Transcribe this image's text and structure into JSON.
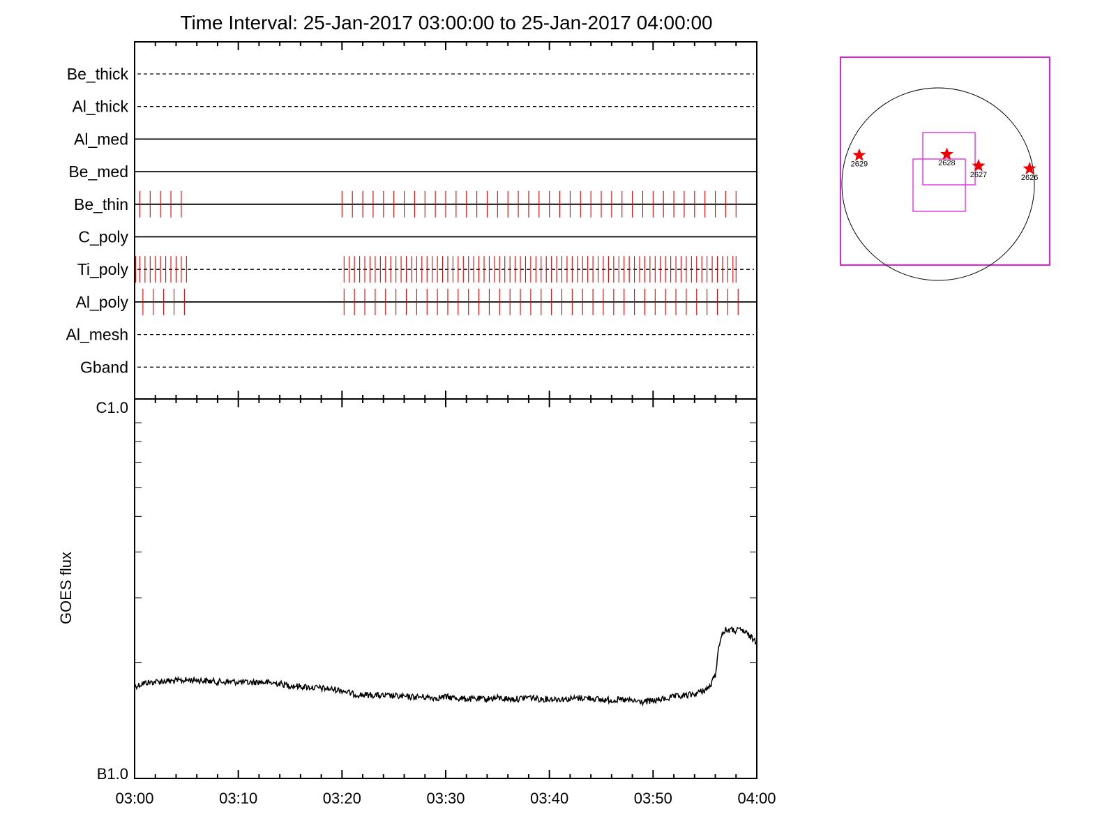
{
  "title": "Time Interval: 25-Jan-2017 03:00:00 to 25-Jan-2017 04:00:00",
  "chart_data": [
    {
      "type": "event_timeline",
      "channels": [
        {
          "name": "Be_thick",
          "style": "dashed",
          "marks": []
        },
        {
          "name": "Al_thick",
          "style": "dashed",
          "marks": []
        },
        {
          "name": "Al_med",
          "style": "solid",
          "marks": []
        },
        {
          "name": "Be_med",
          "style": "solid",
          "marks": []
        },
        {
          "name": "Be_thin",
          "style": "solid",
          "marks": [
            0.5,
            1.5,
            2.5,
            3.5,
            4.5,
            20.0,
            21.0,
            22.0,
            23.0,
            24.0,
            25.0,
            26.0,
            27.0,
            28.0,
            29.0,
            30.0,
            31.0,
            32.0,
            33.0,
            34.0,
            35.0,
            36.0,
            37.0,
            38.0,
            39.0,
            40.0,
            41.0,
            42.0,
            43.0,
            44.0,
            45.0,
            46.0,
            47.0,
            48.0,
            49.0,
            50.0,
            51.0,
            52.0,
            53.0,
            54.0,
            55.0,
            56.0,
            57.0,
            58.0
          ]
        },
        {
          "name": "C_poly",
          "style": "solid",
          "marks": []
        },
        {
          "name": "Ti_poly",
          "style": "dashed",
          "marks": [
            0.1,
            0.5,
            1.0,
            1.5,
            2.0,
            2.5,
            3.0,
            3.5,
            4.0,
            4.5,
            5.0,
            20.2,
            20.7,
            21.2,
            21.7,
            22.2,
            22.7,
            23.2,
            23.7,
            24.2,
            24.7,
            25.2,
            25.7,
            26.2,
            26.7,
            27.2,
            27.7,
            28.2,
            28.7,
            29.2,
            29.7,
            30.2,
            30.7,
            31.2,
            31.7,
            32.2,
            32.7,
            33.2,
            33.7,
            34.2,
            34.7,
            35.2,
            35.7,
            36.2,
            36.7,
            37.2,
            37.7,
            38.2,
            38.7,
            39.2,
            39.7,
            40.2,
            40.7,
            41.2,
            41.7,
            42.2,
            42.7,
            43.2,
            43.7,
            44.2,
            44.7,
            45.2,
            45.7,
            46.2,
            46.7,
            47.2,
            47.7,
            48.2,
            48.7,
            49.2,
            49.7,
            50.2,
            50.7,
            51.2,
            51.7,
            52.2,
            52.7,
            53.2,
            53.7,
            54.2,
            54.7,
            55.2,
            55.7,
            56.2,
            56.7,
            57.2,
            57.7,
            58.0
          ]
        },
        {
          "name": "Al_poly",
          "style": "solid",
          "marks": [
            0.8,
            1.8,
            2.8,
            3.8,
            4.8,
            20.2,
            21.2,
            22.2,
            23.2,
            24.2,
            25.2,
            26.2,
            27.2,
            28.2,
            29.2,
            30.2,
            31.2,
            32.2,
            33.2,
            34.2,
            35.2,
            36.2,
            37.2,
            38.2,
            39.2,
            40.2,
            41.2,
            42.2,
            43.2,
            44.2,
            45.2,
            46.2,
            47.2,
            48.2,
            49.2,
            50.2,
            51.2,
            52.2,
            53.2,
            54.2,
            55.2,
            56.2,
            57.2,
            58.2
          ]
        },
        {
          "name": "Al_mesh",
          "style": "dashed",
          "marks": []
        },
        {
          "name": "Gband",
          "style": "dashed",
          "marks": []
        }
      ],
      "colors": {
        "marks": "#e00000",
        "lines": "#000000"
      }
    },
    {
      "type": "line",
      "ylabel": "GOES flux",
      "yticklabels": [
        "C1.0",
        "B1.0"
      ],
      "ylim": [
        1e-06,
        1e-07
      ],
      "xticklabels": [
        "03:00",
        "03:10",
        "03:20",
        "03:30",
        "03:40",
        "03:50",
        "04:00"
      ],
      "xlim": [
        "03:00",
        "04:00"
      ],
      "x_minutes": [
        0,
        1,
        2,
        3,
        4,
        5,
        6,
        7,
        8,
        9,
        10,
        11,
        12,
        13,
        14,
        15,
        16,
        17,
        18,
        19,
        20,
        21,
        22,
        23,
        24,
        25,
        26,
        27,
        28,
        29,
        30,
        31,
        32,
        33,
        34,
        35,
        36,
        37,
        38,
        39,
        40,
        41,
        42,
        43,
        44,
        45,
        46,
        47,
        48,
        49,
        50,
        51,
        52,
        53,
        54,
        55,
        55.5,
        56,
        56.5,
        57,
        57.5,
        58,
        58.5,
        59,
        59.5,
        60
      ],
      "y_flux": [
        1.72e-07,
        1.76e-07,
        1.77e-07,
        1.78e-07,
        1.78e-07,
        1.79e-07,
        1.79e-07,
        1.78e-07,
        1.77e-07,
        1.77e-07,
        1.77e-07,
        1.76e-07,
        1.77e-07,
        1.76e-07,
        1.75e-07,
        1.73e-07,
        1.72e-07,
        1.71e-07,
        1.7e-07,
        1.69e-07,
        1.68e-07,
        1.64e-07,
        1.63e-07,
        1.63e-07,
        1.62e-07,
        1.62e-07,
        1.61e-07,
        1.61e-07,
        1.61e-07,
        1.6e-07,
        1.61e-07,
        1.6e-07,
        1.59e-07,
        1.59e-07,
        1.59e-07,
        1.6e-07,
        1.59e-07,
        1.59e-07,
        1.61e-07,
        1.59e-07,
        1.59e-07,
        1.59e-07,
        1.59e-07,
        1.6e-07,
        1.6e-07,
        1.58e-07,
        1.58e-07,
        1.58e-07,
        1.57e-07,
        1.56e-07,
        1.57e-07,
        1.59e-07,
        1.61e-07,
        1.62e-07,
        1.64e-07,
        1.68e-07,
        1.72e-07,
        1.85e-07,
        2.35e-07,
        2.45e-07,
        2.45e-07,
        2.44e-07,
        2.45e-07,
        2.4e-07,
        2.33e-07,
        2.28e-07
      ],
      "color": "#000000"
    },
    {
      "type": "solar_disk_map",
      "active_regions": [
        {
          "label": "2629",
          "pos": [
            -0.82,
            0.3
          ]
        },
        {
          "label": "2628",
          "pos": [
            0.09,
            0.31
          ]
        },
        {
          "label": "2627",
          "pos": [
            0.42,
            0.19
          ]
        },
        {
          "label": "2626",
          "pos": [
            0.95,
            0.16
          ]
        }
      ],
      "colors": {
        "frame": "#e020e0",
        "stars": "#ee0000",
        "disk": "#000000"
      }
    }
  ]
}
